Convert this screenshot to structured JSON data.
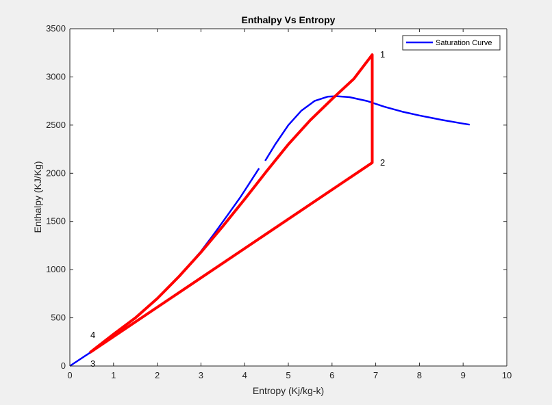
{
  "chart_data": {
    "type": "line",
    "title": "Enthalpy Vs Entropy",
    "xlabel": "Entropy (Kj/kg-k)",
    "ylabel": "Enthalpy (KJ/Kg)",
    "xlim": [
      0,
      10
    ],
    "ylim": [
      0,
      3500
    ],
    "xticks": [
      0,
      1,
      2,
      3,
      4,
      5,
      6,
      7,
      8,
      9,
      10
    ],
    "yticks": [
      0,
      500,
      1000,
      1500,
      2000,
      2500,
      3000,
      3500
    ],
    "grid": false,
    "legend": {
      "position": "top-right",
      "entries": [
        "Saturation Curve"
      ]
    },
    "series": [
      {
        "name": "Saturation Curve",
        "color": "#0000ff",
        "segments": [
          [
            [
              0,
              0
            ],
            [
              0.5,
              150
            ],
            [
              1.0,
              320
            ],
            [
              1.5,
              500
            ],
            [
              2.0,
              700
            ],
            [
              2.5,
              930
            ],
            [
              3.0,
              1190
            ],
            [
              3.3,
              1370
            ],
            [
              3.6,
              1560
            ],
            [
              3.9,
              1750
            ],
            [
              4.1,
              1890
            ],
            [
              4.3,
              2030
            ],
            [
              4.33,
              2050
            ]
          ],
          [
            [
              4.47,
              2130
            ],
            [
              4.7,
              2300
            ],
            [
              5.0,
              2500
            ],
            [
              5.3,
              2650
            ],
            [
              5.6,
              2750
            ],
            [
              5.9,
              2795
            ],
            [
              6.1,
              2800
            ],
            [
              6.4,
              2790
            ],
            [
              6.8,
              2750
            ],
            [
              7.2,
              2690
            ],
            [
              7.6,
              2640
            ],
            [
              8.0,
              2600
            ],
            [
              8.5,
              2555
            ],
            [
              9.0,
              2515
            ],
            [
              9.15,
              2505
            ]
          ]
        ]
      },
      {
        "color": "#ff0000",
        "segments": [
          [
            [
              0.46,
              140
            ],
            [
              1.0,
              330
            ],
            [
              1.5,
              500
            ],
            [
              2.0,
              700
            ],
            [
              2.5,
              930
            ],
            [
              3.0,
              1180
            ],
            [
              3.5,
              1450
            ],
            [
              4.0,
              1730
            ],
            [
              4.5,
              2020
            ],
            [
              5.0,
              2300
            ],
            [
              5.5,
              2550
            ],
            [
              6.0,
              2770
            ],
            [
              6.5,
              2980
            ],
            [
              6.92,
              3230
            ],
            [
              6.92,
              2110
            ],
            [
              0.46,
              140
            ]
          ]
        ]
      }
    ],
    "point_labels": [
      {
        "text": "1",
        "x": 7.1,
        "y": 3230
      },
      {
        "text": "2",
        "x": 7.1,
        "y": 2110
      },
      {
        "text": "3",
        "x": 0.47,
        "y": 20
      },
      {
        "text": "4",
        "x": 0.47,
        "y": 320
      }
    ]
  }
}
